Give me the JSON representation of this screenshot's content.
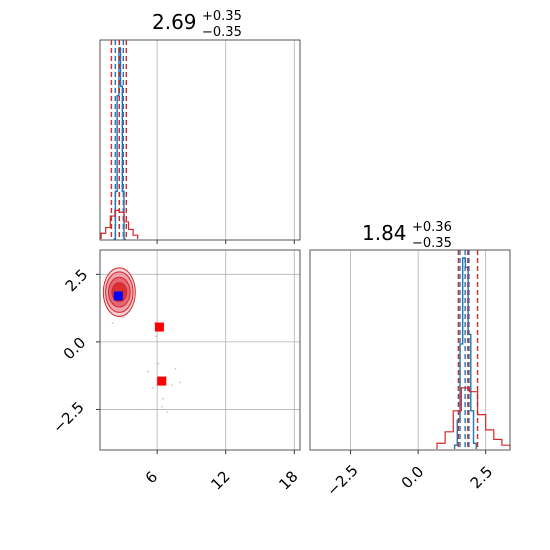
{
  "chart_data": {
    "type": "corner",
    "panels": [
      {
        "id": "p1-marginal",
        "type": "histogram",
        "title": {
          "value": "2.69",
          "plus": "+0.35",
          "minus": "−0.35"
        },
        "xlim": [
          1.0,
          18.5
        ],
        "x_ticks": [
          6,
          12,
          18
        ],
        "grid": true,
        "series": [
          {
            "color": "#1f77b4",
            "style": "step",
            "bin_edges": [
              2.2,
              2.35,
              2.5,
              2.65,
              2.8,
              2.95,
              3.1,
              3.25
            ],
            "counts": [
              0.0,
              0.25,
              0.75,
              1.0,
              0.8,
              0.25,
              0.0
            ],
            "quantiles": [
              2.34,
              2.69,
              3.04
            ]
          },
          {
            "color": "#d62728",
            "style": "step",
            "bin_edges": [
              1.1,
              1.5,
              1.9,
              2.3,
              2.7,
              3.1,
              3.5,
              3.9,
              4.3
            ],
            "counts": [
              0.03,
              0.06,
              0.12,
              0.15,
              0.14,
              0.09,
              0.05,
              0.02
            ],
            "quantiles": [
              2.0,
              2.69,
              3.3
            ]
          }
        ]
      },
      {
        "id": "p1-p2-joint",
        "type": "scatter-contour",
        "xlim": [
          1.0,
          18.5
        ],
        "ylim": [
          -4.0,
          3.4
        ],
        "x_ticks": [
          6,
          12,
          18
        ],
        "y_ticks": [
          -2.5,
          0.0,
          2.5
        ],
        "grid": true,
        "contours": {
          "color": "#d62728",
          "center": [
            2.69,
            1.84
          ],
          "radii": [
            [
              1.4,
              0.9
            ],
            [
              1.2,
              0.75
            ],
            [
              0.95,
              0.55
            ],
            [
              0.65,
              0.35
            ]
          ]
        },
        "points_faint": [
          [
            5.2,
            -1.1
          ],
          [
            6.1,
            -0.8
          ],
          [
            6.8,
            -1.3
          ],
          [
            7.3,
            -1.6
          ],
          [
            5.6,
            -1.7
          ],
          [
            6.5,
            -2.1
          ],
          [
            4.7,
            -2.5
          ],
          [
            6.4,
            -2.4
          ],
          [
            7.6,
            -1.0
          ],
          [
            5.9,
            0.2
          ],
          [
            8.0,
            -1.5
          ],
          [
            6.9,
            -2.6
          ],
          [
            2.1,
            0.7
          ],
          [
            3.0,
            0.9
          ],
          [
            5.8,
            0.7
          ]
        ],
        "markers": [
          {
            "x": 2.6,
            "y": 1.7,
            "color": "#0000ff",
            "label": ""
          },
          {
            "x": 6.2,
            "y": 0.55,
            "color": "#ff0000",
            "label": ""
          },
          {
            "x": 6.4,
            "y": -1.45,
            "color": "#ff0000",
            "label": ""
          }
        ]
      },
      {
        "id": "p2-marginal",
        "type": "histogram",
        "title": {
          "value": "1.84",
          "plus": "+0.36",
          "minus": "−0.35"
        },
        "xlim": [
          -4.0,
          3.4
        ],
        "x_ticks": [
          -2.5,
          0.0,
          2.5
        ],
        "grid": true,
        "series": [
          {
            "color": "#1f77b4",
            "style": "step",
            "bin_edges": [
              1.35,
              1.45,
              1.55,
              1.65,
              1.75,
              1.85,
              1.95,
              2.05,
              2.15
            ],
            "counts": [
              0.02,
              0.15,
              0.55,
              1.0,
              0.95,
              0.6,
              0.2,
              0.03
            ],
            "quantiles": [
              1.55,
              1.74,
              1.88
            ]
          },
          {
            "color": "#d62728",
            "style": "step",
            "bin_edges": [
              0.7,
              1.0,
              1.3,
              1.6,
              1.9,
              2.2,
              2.5,
              2.8,
              3.1,
              3.4
            ],
            "counts": [
              0.03,
              0.09,
              0.2,
              0.32,
              0.3,
              0.18,
              0.1,
              0.05,
              0.02
            ],
            "quantiles": [
              1.49,
              1.84,
              2.2
            ]
          }
        ]
      }
    ],
    "tick_labels": {
      "six": "6",
      "twelve": "12",
      "eighteen": "18",
      "neg25": "−2.5",
      "zero": "0.0",
      "pos25": "2.5"
    }
  }
}
